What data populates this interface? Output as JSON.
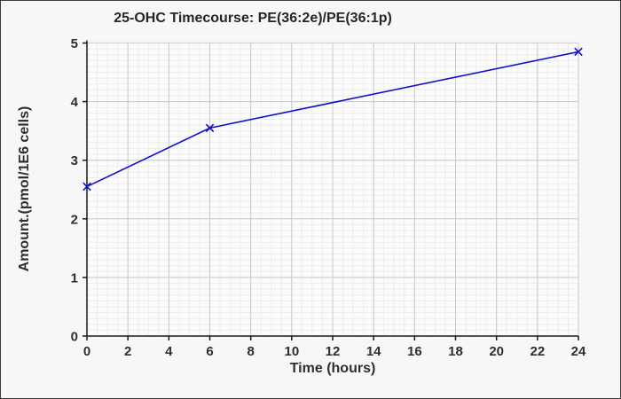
{
  "window": {
    "background_color": "#f7f7f7",
    "border_color": "#3c3c3c"
  },
  "chart_data": {
    "type": "line",
    "title": "25-OHC Timecourse: PE(36:2e)/PE(36:1p)",
    "xlabel": "Time (hours)",
    "ylabel": "Amount.(pmol/1E6 cells)",
    "x": [
      0,
      6,
      24
    ],
    "y": [
      2.55,
      3.55,
      4.85
    ],
    "xlim": [
      0,
      24
    ],
    "ylim": [
      0,
      5
    ],
    "x_ticks": [
      0,
      2,
      4,
      6,
      8,
      10,
      12,
      14,
      16,
      18,
      20,
      22,
      24
    ],
    "y_ticks": [
      0,
      1,
      2,
      3,
      4,
      5
    ],
    "x_minor_step": 0.5,
    "y_minor_step": 0.1,
    "grid": true,
    "legend": "none",
    "marker": "x",
    "line_color": "#1010cc",
    "plot_bg_color": "#fbfbfb",
    "minor_grid_color": "#ececec",
    "major_grid_color": "#c9c9c9",
    "axis_color": "#1a1a1a",
    "frame_color": "#d2d2d2",
    "text_color": "#2e2e2e"
  }
}
